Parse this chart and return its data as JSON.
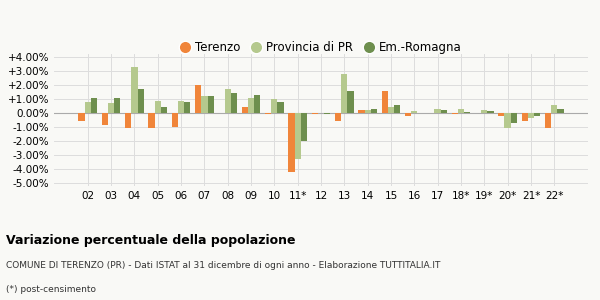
{
  "years": [
    "02",
    "03",
    "04",
    "05",
    "06",
    "07",
    "08",
    "09",
    "10",
    "11*",
    "12",
    "13",
    "14",
    "15",
    "16",
    "17",
    "18*",
    "19*",
    "20*",
    "21*",
    "22*"
  ],
  "terenzo": [
    -0.55,
    -0.83,
    -1.05,
    -1.05,
    -1.0,
    2.0,
    0.0,
    0.4,
    -0.05,
    -4.2,
    -0.05,
    -0.55,
    0.2,
    1.55,
    -0.2,
    0.0,
    -0.1,
    0.0,
    -0.2,
    -0.55,
    -1.05
  ],
  "provincia": [
    0.75,
    0.7,
    3.25,
    0.85,
    0.85,
    1.2,
    1.7,
    1.05,
    1.0,
    -3.25,
    0.0,
    2.75,
    0.2,
    0.4,
    0.15,
    0.3,
    0.3,
    0.2,
    -1.05,
    -0.35,
    0.6
  ],
  "emromagna": [
    1.1,
    1.1,
    1.7,
    0.45,
    0.8,
    1.2,
    1.4,
    1.3,
    0.8,
    -2.0,
    -0.05,
    1.55,
    0.25,
    0.6,
    0.0,
    0.2,
    0.1,
    0.15,
    -0.7,
    -0.2,
    0.25
  ],
  "color_terenzo": "#f0853a",
  "color_provincia": "#b5c98e",
  "color_emromagna": "#6e8f4e",
  "title": "Variazione percentuale della popolazione",
  "subtitle": "COMUNE DI TERENZO (PR) - Dati ISTAT al 31 dicembre di ogni anno - Elaborazione TUTTITALIA.IT",
  "footnote": "(*) post-censimento",
  "ylim": [
    -5.0,
    4.0
  ],
  "yticks": [
    -5.0,
    -4.0,
    -3.0,
    -2.0,
    -1.0,
    0.0,
    1.0,
    2.0,
    3.0,
    4.0
  ],
  "legend_labels": [
    "Terenzo",
    "Provincia di PR",
    "Em.-Romagna"
  ],
  "bg_color": "#f9f9f6"
}
